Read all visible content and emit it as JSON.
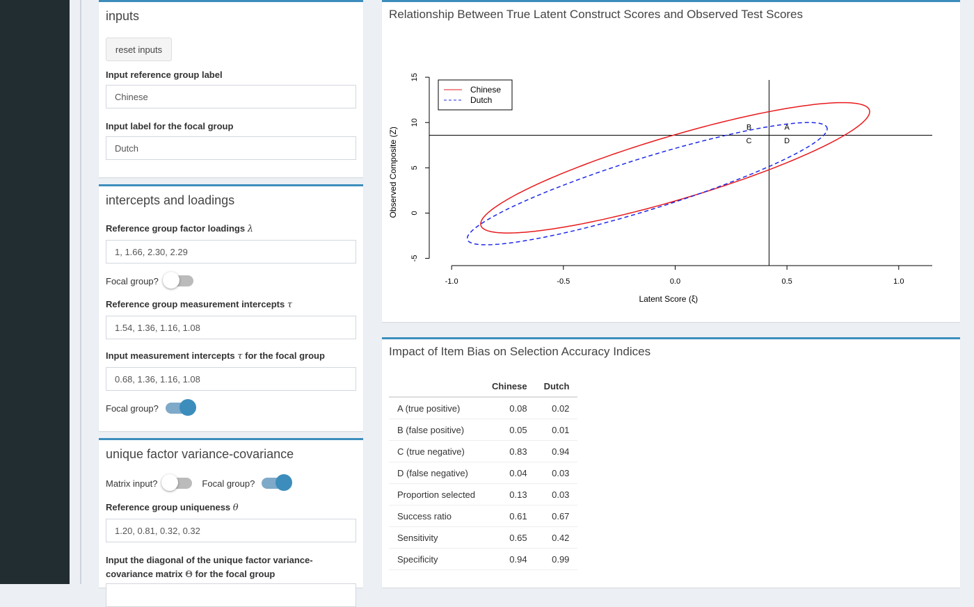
{
  "inputs_box": {
    "title": "inputs",
    "reset_label": "reset inputs",
    "ref_label_title": "Input reference group label",
    "ref_label_value": "Chinese",
    "focal_label_title": "Input label for the focal group",
    "focal_label_value": "Dutch"
  },
  "loadings_box": {
    "title": "intercepts and loadings",
    "ref_loadings_title": "Reference group factor loadings",
    "ref_loadings_symbol": "λ",
    "ref_loadings_value": "1, 1.66, 2.30, 2.29",
    "focal_toggle_1_label": "Focal group?",
    "focal_toggle_1_state": "off",
    "ref_intercepts_title": "Reference group measurement intercepts",
    "ref_intercepts_symbol": "τ",
    "ref_intercepts_value": "1.54, 1.36, 1.16, 1.08",
    "focal_intercepts_title_pre": "Input measurement intercepts",
    "focal_intercepts_symbol": "τ",
    "focal_intercepts_title_post": "for the focal group",
    "focal_intercepts_value": "0.68, 1.36, 1.16, 1.08",
    "focal_toggle_2_label": "Focal group?",
    "focal_toggle_2_state": "on"
  },
  "unique_box": {
    "title": "unique factor variance-covariance",
    "matrix_toggle_label": "Matrix input?",
    "matrix_toggle_state": "off",
    "focal_toggle_label": "Focal group?",
    "focal_toggle_state": "on",
    "ref_uniq_title": "Reference group uniqueness",
    "ref_uniq_symbol": "θ",
    "ref_uniq_value": "1.20, 0.81, 0.32, 0.32",
    "focal_diag_title_line1": "Input the diagonal of the unique factor variance-",
    "focal_diag_title_line2_pre": "covariance matrix",
    "focal_diag_symbol": "Θ",
    "focal_diag_title_line2_post": "for the focal group"
  },
  "plot": {
    "title": "Relationship Between True Latent Construct Scores and Observed Test Scores"
  },
  "chart_data": {
    "type": "scatter",
    "xlabel": "Latent Score (ξ)",
    "ylabel": "Observed Composite (Z)",
    "xlim": [
      -1.1,
      1.15
    ],
    "ylim": [
      -5.8,
      14.7
    ],
    "x_ticks": [
      "-1.0",
      "-0.5",
      "0.0",
      "0.5",
      "1.0"
    ],
    "y_ticks": [
      "-5",
      "0",
      "5",
      "10",
      "15"
    ],
    "cut_x": 0.42,
    "cut_y": 8.6,
    "quadrant_labels": [
      "A",
      "B",
      "C",
      "D"
    ],
    "legend_position": "top-left",
    "series": [
      {
        "name": "Chinese",
        "style": "solid",
        "color": "#e8191c",
        "center": [
          0.0,
          5.0
        ],
        "x_range": [
          -0.87,
          0.87
        ],
        "y_range": [
          -2.2,
          12.2
        ]
      },
      {
        "name": "Dutch",
        "style": "dashed",
        "color": "#1c28e8",
        "center": [
          -0.09,
          2.4
        ],
        "x_range": [
          -0.93,
          0.68
        ],
        "y_range": [
          -3.5,
          10.0
        ]
      }
    ]
  },
  "accuracy": {
    "title": "Impact of Item Bias on Selection Accuracy Indices",
    "columns": [
      "Chinese",
      "Dutch"
    ],
    "rows": [
      {
        "label": "A (true positive)",
        "v1": "0.08",
        "v2": "0.02"
      },
      {
        "label": "B (false positive)",
        "v1": "0.05",
        "v2": "0.01"
      },
      {
        "label": "C (true negative)",
        "v1": "0.83",
        "v2": "0.94"
      },
      {
        "label": "D (false negative)",
        "v1": "0.04",
        "v2": "0.03"
      },
      {
        "label": "Proportion selected",
        "v1": "0.13",
        "v2": "0.03"
      },
      {
        "label": "Success ratio",
        "v1": "0.61",
        "v2": "0.67"
      },
      {
        "label": "Sensitivity",
        "v1": "0.65",
        "v2": "0.42"
      },
      {
        "label": "Specificity",
        "v1": "0.94",
        "v2": "0.99"
      }
    ]
  }
}
